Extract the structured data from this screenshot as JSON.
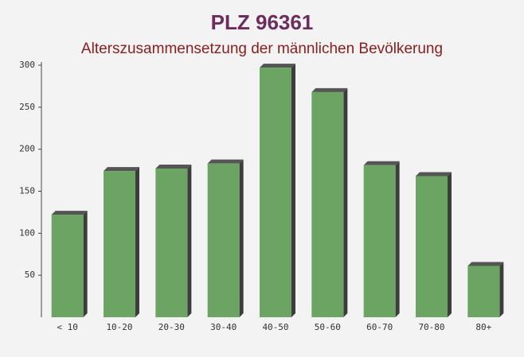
{
  "chart_data": {
    "type": "bar",
    "title": "PLZ 96361",
    "subtitle": "Alterszusammensetzung der männlichen Bevölkerung",
    "categories": [
      "< 10",
      "10-20",
      "20-30",
      "30-40",
      "40-50",
      "50-60",
      "60-70",
      "70-80",
      "80+"
    ],
    "values": [
      122,
      174,
      177,
      183,
      297,
      268,
      181,
      168,
      61
    ],
    "color": "#6ba463",
    "ylim": [
      0,
      300
    ],
    "yticks": [
      50,
      100,
      150,
      200,
      250,
      300
    ],
    "grid": false
  }
}
